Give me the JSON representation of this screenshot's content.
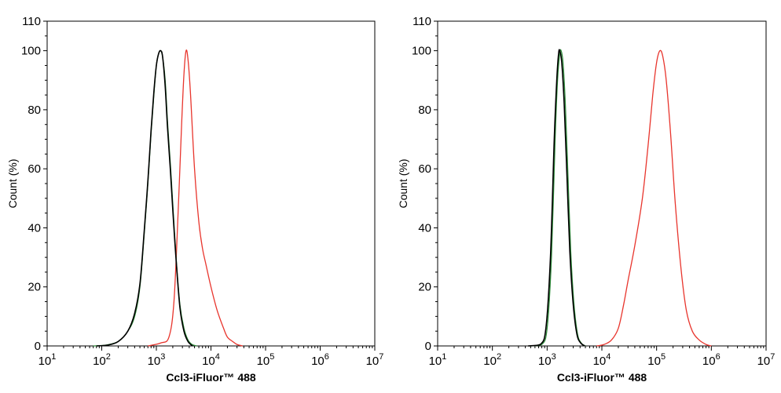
{
  "chart_data": [
    {
      "type": "line",
      "panel": "left",
      "xlabel": "Ccl3-iFluor™ 488",
      "ylabel": "Count  (%)",
      "x_scale": "log",
      "xlim": [
        10,
        10000000
      ],
      "ylim": [
        0,
        110
      ],
      "x_ticks": [
        {
          "base": "10",
          "exp": "1"
        },
        {
          "base": "10",
          "exp": "2"
        },
        {
          "base": "10",
          "exp": "3"
        },
        {
          "base": "10",
          "exp": "4"
        },
        {
          "base": "10",
          "exp": "5"
        },
        {
          "base": "10",
          "exp": "6"
        },
        {
          "base": "10",
          "exp": "7"
        }
      ],
      "y_ticks": [
        "0",
        "20",
        "40",
        "60",
        "80",
        "100",
        "110"
      ],
      "grid": false,
      "legend": "none",
      "series": [
        {
          "color": "#e8352d",
          "width": 1.3,
          "points": [
            [
              700,
              0
            ],
            [
              1200,
              1
            ],
            [
              1700,
              3
            ],
            [
              2100,
              15
            ],
            [
              2500,
              45
            ],
            [
              2900,
              75
            ],
            [
              3200,
              92
            ],
            [
              3500,
              100
            ],
            [
              3800,
              97
            ],
            [
              4200,
              86
            ],
            [
              5000,
              60
            ],
            [
              6000,
              42
            ],
            [
              7000,
              33
            ],
            [
              8000,
              28
            ],
            [
              10000,
              20
            ],
            [
              13000,
              12
            ],
            [
              17000,
              6
            ],
            [
              20000,
              3
            ],
            [
              25000,
              1.5
            ],
            [
              30000,
              0.5
            ],
            [
              38000,
              0
            ]
          ]
        },
        {
          "color": "#2e8b3a",
          "width": 1.3,
          "points": [
            [
              70,
              0
            ],
            [
              120,
              0.3
            ],
            [
              200,
              1.5
            ],
            [
              300,
              5
            ],
            [
              400,
              10
            ],
            [
              500,
              20
            ],
            [
              600,
              38
            ],
            [
              700,
              55
            ],
            [
              800,
              72
            ],
            [
              900,
              85
            ],
            [
              1000,
              95
            ],
            [
              1100,
              99
            ],
            [
              1200,
              100
            ],
            [
              1300,
              98
            ],
            [
              1450,
              90
            ],
            [
              1600,
              76
            ],
            [
              1800,
              62
            ],
            [
              2000,
              48
            ],
            [
              2300,
              30
            ],
            [
              2700,
              14
            ],
            [
              3200,
              6
            ],
            [
              3800,
              2
            ],
            [
              4500,
              0.5
            ],
            [
              5500,
              0
            ]
          ]
        },
        {
          "color": "#000000",
          "width": 1.6,
          "points": [
            [
              80,
              0
            ],
            [
              130,
              0.3
            ],
            [
              200,
              1.5
            ],
            [
              300,
              5
            ],
            [
              400,
              11
            ],
            [
              500,
              21
            ],
            [
              600,
              39
            ],
            [
              700,
              56
            ],
            [
              800,
              73
            ],
            [
              900,
              86
            ],
            [
              1000,
              95
            ],
            [
              1100,
              99
            ],
            [
              1200,
              100
            ],
            [
              1300,
              98
            ],
            [
              1450,
              88
            ],
            [
              1600,
              74
            ],
            [
              1800,
              60
            ],
            [
              2000,
              46
            ],
            [
              2300,
              29
            ],
            [
              2700,
              13
            ],
            [
              3200,
              5
            ],
            [
              3800,
              1.5
            ],
            [
              4600,
              0
            ]
          ]
        }
      ]
    },
    {
      "type": "line",
      "panel": "right",
      "xlabel": "Ccl3-iFluor™ 488",
      "ylabel": "Count  (%)",
      "x_scale": "log",
      "xlim": [
        10,
        10000000
      ],
      "ylim": [
        0,
        110
      ],
      "x_ticks": [
        {
          "base": "10",
          "exp": "1"
        },
        {
          "base": "10",
          "exp": "2"
        },
        {
          "base": "10",
          "exp": "3"
        },
        {
          "base": "10",
          "exp": "4"
        },
        {
          "base": "10",
          "exp": "5"
        },
        {
          "base": "10",
          "exp": "6"
        },
        {
          "base": "10",
          "exp": "7"
        }
      ],
      "y_ticks": [
        "0",
        "20",
        "40",
        "60",
        "80",
        "100",
        "110"
      ],
      "grid": false,
      "legend": "none",
      "series": [
        {
          "color": "#e8352d",
          "width": 1.3,
          "points": [
            [
              8000,
              0
            ],
            [
              11000,
              0.5
            ],
            [
              15000,
              2
            ],
            [
              20000,
              6
            ],
            [
              25000,
              14
            ],
            [
              30000,
              22
            ],
            [
              40000,
              34
            ],
            [
              55000,
              50
            ],
            [
              70000,
              68
            ],
            [
              85000,
              85
            ],
            [
              100000,
              96
            ],
            [
              115000,
              100
            ],
            [
              130000,
              98
            ],
            [
              150000,
              90
            ],
            [
              180000,
              72
            ],
            [
              220000,
              48
            ],
            [
              280000,
              26
            ],
            [
              350000,
              12
            ],
            [
              450000,
              5
            ],
            [
              600000,
              2
            ],
            [
              800000,
              0.5
            ],
            [
              1000000,
              0
            ]
          ]
        },
        {
          "color": "#2e8b3a",
          "width": 1.3,
          "points": [
            [
              500,
              0
            ],
            [
              800,
              0.5
            ],
            [
              1000,
              6
            ],
            [
              1200,
              30
            ],
            [
              1400,
              70
            ],
            [
              1550,
              90
            ],
            [
              1700,
              99
            ],
            [
              1800,
              100
            ],
            [
              1950,
              96
            ],
            [
              2150,
              82
            ],
            [
              2400,
              58
            ],
            [
              2700,
              32
            ],
            [
              3100,
              14
            ],
            [
              3600,
              4
            ],
            [
              4200,
              1
            ],
            [
              5000,
              0
            ]
          ]
        },
        {
          "color": "#000000",
          "width": 1.6,
          "points": [
            [
              450,
              0
            ],
            [
              750,
              0.5
            ],
            [
              950,
              6
            ],
            [
              1150,
              30
            ],
            [
              1350,
              70
            ],
            [
              1500,
              90
            ],
            [
              1620,
              99
            ],
            [
              1700,
              100
            ],
            [
              1850,
              96
            ],
            [
              2050,
              82
            ],
            [
              2300,
              58
            ],
            [
              2600,
              32
            ],
            [
              3000,
              14
            ],
            [
              3500,
              4
            ],
            [
              4100,
              1
            ],
            [
              4900,
              0
            ]
          ]
        }
      ]
    }
  ]
}
